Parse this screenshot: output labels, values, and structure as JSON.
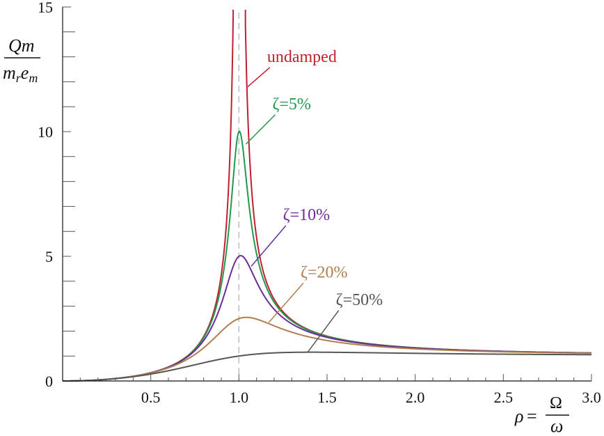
{
  "chart_data": {
    "type": "line",
    "x_range": [
      0,
      3
    ],
    "ylim": [
      0,
      15
    ],
    "grid": false,
    "legend": "none",
    "xticks": [
      "0.5",
      "1.0",
      "1.5",
      "2.0",
      "2.5",
      "3.0"
    ],
    "xtick_values": [
      0.5,
      1.0,
      1.5,
      2.0,
      2.5,
      3.0
    ],
    "yticks": [
      "0",
      "5",
      "10",
      "15"
    ],
    "ytick_values": [
      0,
      5,
      10,
      15
    ],
    "ylabel": {
      "numerator": "Qm",
      "denominator_base": "m",
      "denominator_sub": "r",
      "denominator_mid": "e",
      "denominator_sub2": "m"
    },
    "xlabel": {
      "lhs": "ρ",
      "eq": "=",
      "numerator": "Ω",
      "denominator": "ω"
    },
    "resonance_line": {
      "x": 1.0,
      "color": "#bbbbbb"
    },
    "series": [
      {
        "label": "undamped",
        "zeta": 0.0,
        "color": "#c0202e",
        "label_x": 1.16,
        "label_y": 12.8,
        "leader_x": 1.05,
        "leader_y": 11.8
      },
      {
        "label": "ζ=5%",
        "zeta": 0.05,
        "color": "#1e9a4a",
        "label_x": 1.19,
        "label_y": 10.9,
        "leader_x": 1.04,
        "leader_y": 9.5
      },
      {
        "label": "ζ=10%",
        "zeta": 0.1,
        "color": "#6a2c96",
        "label_x": 1.25,
        "label_y": 6.45,
        "leader_x": 1.07,
        "leader_y": 4.6
      },
      {
        "label": "ζ=20%",
        "zeta": 0.2,
        "color": "#b07d4e",
        "label_x": 1.35,
        "label_y": 4.15,
        "leader_x": 1.17,
        "leader_y": 2.35
      },
      {
        "label": "ζ=50%",
        "zeta": 0.5,
        "color": "#555555",
        "label_x": 1.55,
        "label_y": 3.05,
        "leader_x": 1.39,
        "leader_y": 1.15
      }
    ]
  }
}
